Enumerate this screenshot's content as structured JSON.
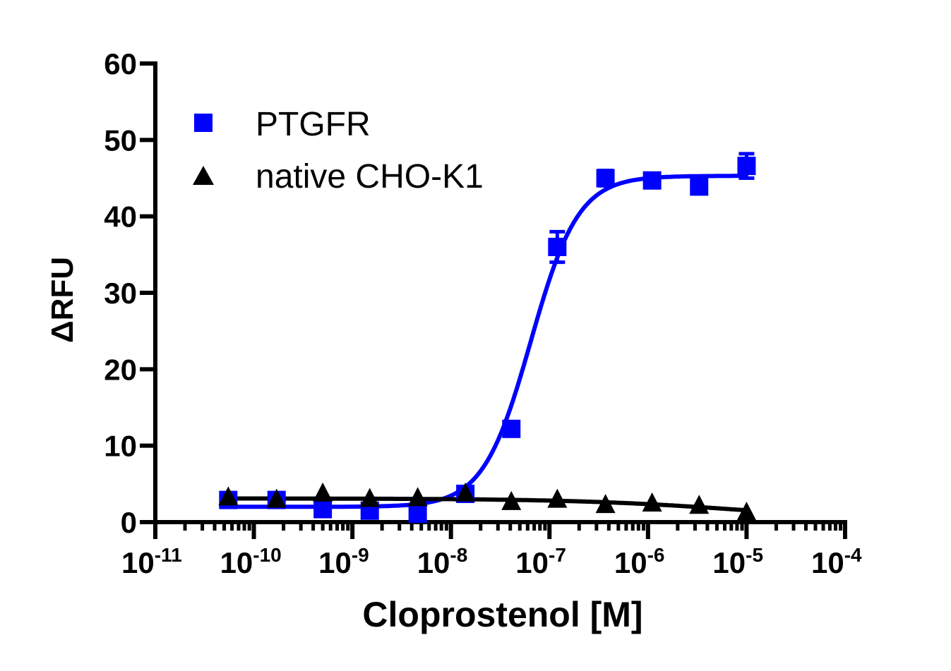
{
  "chart_data": {
    "type": "scatter",
    "title": "",
    "xlabel": "Cloprostenol [M]",
    "ylabel": "ΔRFU",
    "xscale": "log",
    "xlim_log10": [
      -11,
      -4
    ],
    "ylim": [
      0,
      60
    ],
    "x_tick_exponents": [
      "-11",
      "-10",
      "-9",
      "-8",
      "-7",
      "-6",
      "-5",
      "-4"
    ],
    "x_tick_base": "10",
    "y_ticks": [
      "0",
      "10",
      "20",
      "30",
      "40",
      "50",
      "60"
    ],
    "legend_position": "top-left",
    "series": [
      {
        "name": "PTGFR",
        "color": "#0000ff",
        "marker": "square",
        "x": [
          5.5e-11,
          1.7e-10,
          5e-10,
          1.5e-09,
          4.6e-09,
          1.4e-08,
          4.1e-08,
          1.2e-07,
          3.7e-07,
          1.1e-06,
          3.3e-06,
          1e-05
        ],
        "y": [
          2.9,
          2.9,
          1.7,
          1.5,
          1.1,
          3.7,
          12.2,
          36.0,
          45.0,
          44.7,
          43.9,
          46.6
        ],
        "err": [
          0.5,
          0.4,
          0.3,
          0.3,
          0.3,
          0.5,
          0.6,
          2.0,
          1.0,
          0.5,
          0.8,
          1.6
        ],
        "fit": {
          "bottom": 2.0,
          "top": 45.3,
          "logEC50": -7.19,
          "hill": 1.8
        }
      },
      {
        "name": "native CHO-K1",
        "color": "#000000",
        "marker": "triangle",
        "x": [
          5.5e-11,
          1.7e-10,
          5e-10,
          1.5e-09,
          4.6e-09,
          1.4e-08,
          4.1e-08,
          1.2e-07,
          3.7e-07,
          1.1e-06,
          3.3e-06,
          1e-05
        ],
        "y": [
          3.2,
          2.9,
          3.7,
          3.0,
          3.1,
          3.7,
          2.6,
          2.9,
          2.2,
          2.4,
          2.1,
          1.2
        ],
        "err": [
          0.2,
          0.2,
          0.2,
          0.2,
          0.2,
          0.2,
          0.2,
          0.2,
          0.2,
          0.2,
          0.2,
          0.2
        ],
        "fit": {
          "bottom": 0,
          "top": 3.1,
          "logEC50": -5.0,
          "hill": -0.5
        }
      }
    ]
  }
}
